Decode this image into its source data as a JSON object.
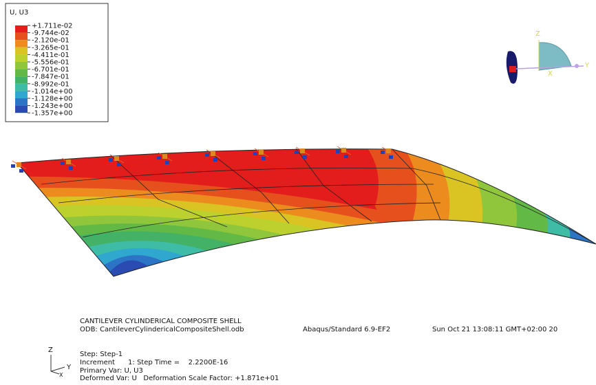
{
  "legend": {
    "title": "U, U3",
    "labels": [
      "+1.711e-02",
      "-9.744e-02",
      "-2.120e-01",
      "-3.265e-01",
      "-4.411e-01",
      "-5.556e-01",
      "-6.701e-01",
      "-7.847e-01",
      "-8.992e-01",
      "-1.014e+00",
      "-1.128e+00",
      "-1.243e+00",
      "-1.357e+00"
    ],
    "colors": [
      "#e21d1b",
      "#e5501d",
      "#ec8c1f",
      "#d9c424",
      "#bcd12d",
      "#8fc63b",
      "#62b946",
      "#43b266",
      "#3fbca5",
      "#2fa7cf",
      "#2c74c5",
      "#2a4cb2"
    ]
  },
  "view_triad": {
    "z": "Z",
    "y": "Y",
    "x": "X"
  },
  "info": {
    "model": "CANTILEVER CYLINDERICAL COMPOSITE SHELL",
    "odb": "ODB: CantileverCylindericalCompositeShell.odb",
    "solver": "Abaqus/Standard 6.9-EF2",
    "date": "Sun Oct 21 13:08:11 GMT+02:00 20",
    "step": "Step: Step-1",
    "increment": "Increment      1: Step Time =    2.2200E-16",
    "primary": "Primary Var: U, U3",
    "deformed": "Deformed Var: U   Deformation Scale Factor: +1.871e+01"
  },
  "axis_triad": {
    "z": "Z",
    "y": "Y",
    "x": "X"
  }
}
